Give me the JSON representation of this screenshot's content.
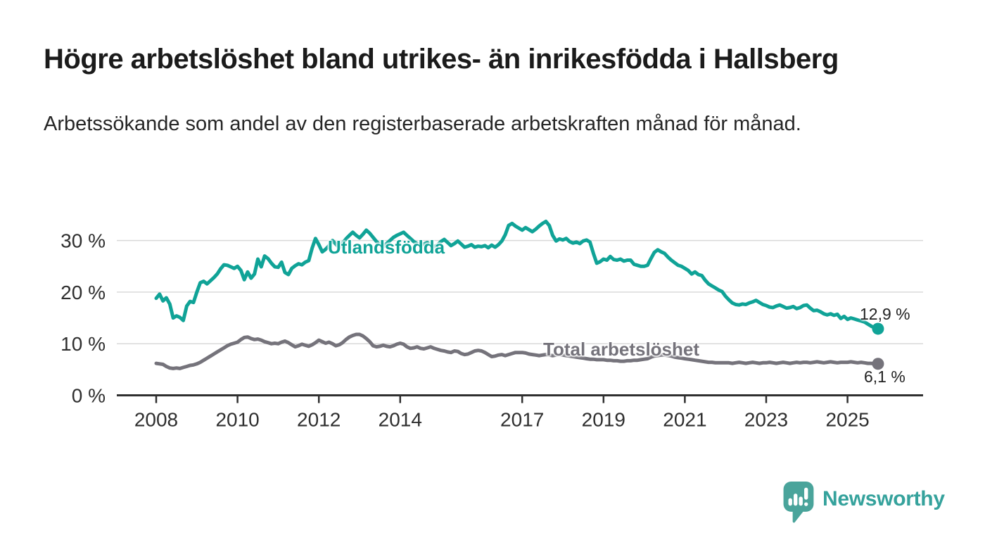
{
  "header": {
    "title": "Högre arbetslöshet bland utrikes- än inrikesfödda i Hallsberg",
    "subtitle": "Arbetssökande som andel av den registerbaserade arbetskraften månad för månad."
  },
  "chart_data": {
    "type": "line",
    "title": "Högre arbetslöshet bland utrikes- än inrikesfödda i Hallsberg",
    "subtitle": "Arbetssökande som andel av den registerbaserade arbetskraften månad för månad.",
    "frequency": "monthly",
    "x_start": "2008-01",
    "x_end": "2025-10",
    "xlim": [
      2007.1,
      2026.9
    ],
    "ylim": [
      0,
      35
    ],
    "grid": true,
    "legend_position": "inline-labels-on-lines",
    "y_ticks": [
      {
        "v": 0,
        "label": "0 %"
      },
      {
        "v": 10,
        "label": "10 %"
      },
      {
        "v": 20,
        "label": "20 %"
      },
      {
        "v": 30,
        "label": "30 %"
      }
    ],
    "x_ticks": [
      {
        "v": 2008,
        "label": "2008"
      },
      {
        "v": 2010,
        "label": "2010"
      },
      {
        "v": 2012,
        "label": "2012"
      },
      {
        "v": 2014,
        "label": "2014"
      },
      {
        "v": 2017,
        "label": "2017"
      },
      {
        "v": 2019,
        "label": "2019"
      },
      {
        "v": 2021,
        "label": "2021"
      },
      {
        "v": 2023,
        "label": "2023"
      },
      {
        "v": 2025,
        "label": "2025"
      }
    ],
    "series": [
      {
        "name": "Utlandsfödda",
        "color": "#10a397",
        "end_label": "12,9 %",
        "end_value": 12.9,
        "values": [
          18.8,
          19.6,
          18.3,
          18.9,
          17.7,
          15.0,
          15.4,
          15.1,
          14.5,
          17.3,
          18.2,
          18.0,
          20.0,
          21.8,
          22.1,
          21.6,
          22.2,
          22.8,
          23.5,
          24.5,
          25.3,
          25.2,
          24.9,
          24.6,
          25.0,
          24.2,
          22.4,
          23.9,
          22.7,
          23.5,
          26.4,
          24.9,
          27.0,
          26.5,
          25.6,
          24.9,
          24.8,
          25.8,
          23.8,
          23.4,
          24.6,
          25.1,
          25.5,
          25.3,
          25.8,
          26.1,
          28.5,
          30.4,
          29.2,
          27.8,
          28.3,
          29.0,
          30.0,
          29.3,
          28.6,
          29.5,
          30.3,
          31.0,
          31.6,
          31.0,
          30.5,
          31.2,
          32.0,
          31.4,
          30.6,
          29.8,
          29.2,
          28.8,
          29.4,
          30.0,
          30.6,
          31.0,
          31.3,
          31.6,
          31.0,
          30.4,
          29.8,
          29.4,
          29.0,
          29.3,
          29.6,
          29.2,
          28.8,
          29.1,
          29.8,
          30.2,
          29.6,
          29.0,
          29.4,
          29.9,
          29.3,
          28.7,
          28.9,
          29.2,
          28.7,
          28.9,
          28.8,
          29.0,
          28.6,
          29.1,
          28.7,
          29.2,
          29.9,
          31.1,
          32.9,
          33.3,
          32.8,
          32.4,
          32.0,
          32.5,
          32.1,
          31.7,
          32.2,
          32.8,
          33.3,
          33.7,
          32.9,
          31.0,
          29.9,
          30.3,
          30.1,
          30.4,
          29.8,
          29.5,
          29.7,
          29.4,
          29.9,
          30.1,
          29.7,
          27.5,
          25.6,
          25.9,
          26.4,
          26.2,
          26.9,
          26.3,
          26.2,
          26.4,
          26.0,
          26.2,
          26.2,
          25.4,
          25.2,
          25.0,
          25.0,
          25.2,
          26.5,
          27.7,
          28.2,
          27.8,
          27.5,
          26.8,
          26.2,
          25.7,
          25.2,
          25.0,
          24.6,
          24.2,
          23.5,
          23.9,
          23.4,
          23.2,
          22.3,
          21.6,
          21.2,
          20.8,
          20.4,
          20.1,
          19.2,
          18.5,
          17.9,
          17.6,
          17.5,
          17.7,
          17.6,
          17.9,
          18.1,
          18.4,
          18.0,
          17.6,
          17.4,
          17.1,
          17.0,
          17.3,
          17.5,
          17.2,
          16.9,
          17.0,
          17.2,
          16.8,
          17.0,
          17.4,
          17.5,
          16.9,
          16.4,
          16.5,
          16.2,
          15.8,
          15.6,
          15.8,
          15.5,
          15.7,
          14.9,
          15.3,
          14.7,
          15.0,
          14.8,
          14.6,
          14.4,
          14.2,
          13.8,
          13.4,
          13.1,
          12.9
        ]
      },
      {
        "name": "Total arbetslöshet",
        "color": "#75737b",
        "end_label": "6,1 %",
        "end_value": 6.1,
        "values": [
          6.2,
          6.1,
          6.0,
          5.6,
          5.3,
          5.2,
          5.3,
          5.2,
          5.4,
          5.6,
          5.8,
          5.9,
          6.1,
          6.4,
          6.8,
          7.2,
          7.6,
          8.0,
          8.4,
          8.8,
          9.2,
          9.6,
          9.9,
          10.1,
          10.3,
          10.8,
          11.2,
          11.3,
          11.0,
          10.8,
          10.9,
          10.7,
          10.4,
          10.2,
          10.0,
          10.1,
          10.0,
          10.3,
          10.5,
          10.2,
          9.8,
          9.4,
          9.6,
          9.9,
          9.7,
          9.5,
          9.8,
          10.2,
          10.7,
          10.4,
          10.1,
          10.3,
          10.0,
          9.6,
          9.8,
          10.2,
          10.8,
          11.3,
          11.6,
          11.8,
          11.8,
          11.5,
          11.0,
          10.4,
          9.6,
          9.4,
          9.5,
          9.7,
          9.5,
          9.4,
          9.6,
          9.9,
          10.1,
          9.9,
          9.4,
          9.1,
          9.2,
          9.4,
          9.1,
          9.0,
          9.2,
          9.4,
          9.1,
          8.9,
          8.7,
          8.6,
          8.4,
          8.3,
          8.6,
          8.5,
          8.1,
          7.9,
          8.0,
          8.3,
          8.6,
          8.7,
          8.6,
          8.3,
          7.9,
          7.5,
          7.6,
          7.8,
          7.9,
          7.7,
          7.9,
          8.1,
          8.3,
          8.3,
          8.3,
          8.2,
          8.0,
          7.9,
          7.8,
          7.7,
          7.8,
          7.9,
          7.8,
          7.7,
          7.8,
          7.9,
          7.8,
          7.7,
          7.6,
          7.5,
          7.4,
          7.3,
          7.2,
          7.1,
          7.0,
          7.0,
          6.9,
          6.9,
          6.9,
          6.8,
          6.8,
          6.7,
          6.7,
          6.6,
          6.6,
          6.7,
          6.7,
          6.8,
          6.8,
          6.9,
          7.0,
          7.1,
          7.4,
          7.6,
          7.7,
          7.8,
          7.8,
          7.7,
          7.6,
          7.4,
          7.3,
          7.2,
          7.1,
          7.0,
          6.9,
          6.8,
          6.7,
          6.6,
          6.5,
          6.4,
          6.4,
          6.3,
          6.3,
          6.3,
          6.3,
          6.3,
          6.2,
          6.3,
          6.4,
          6.3,
          6.2,
          6.3,
          6.4,
          6.3,
          6.2,
          6.3,
          6.3,
          6.4,
          6.3,
          6.2,
          6.3,
          6.4,
          6.3,
          6.2,
          6.3,
          6.4,
          6.3,
          6.4,
          6.4,
          6.3,
          6.4,
          6.5,
          6.4,
          6.3,
          6.4,
          6.5,
          6.4,
          6.3,
          6.4,
          6.4,
          6.4,
          6.5,
          6.4,
          6.3,
          6.4,
          6.3,
          6.2,
          6.2,
          6.1,
          6.1
        ]
      }
    ]
  },
  "branding": {
    "logo_text": "Newsworthy",
    "logo_icon": "bar-chart-speech-bubble-icon",
    "logo_color": "#4aa49b",
    "text_color": "#35a29c"
  },
  "colors": {
    "series_foreign_born": "#10a397",
    "series_total": "#75737b",
    "gridline": "#d9d9d9",
    "axis": "#2f2f2f",
    "text": "#1b1b1b"
  }
}
